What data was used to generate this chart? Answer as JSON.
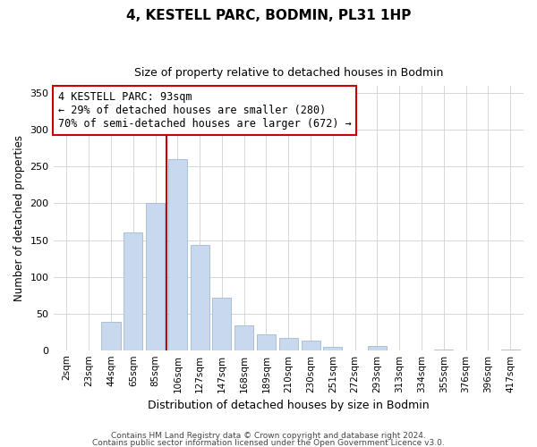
{
  "title": "4, KESTELL PARC, BODMIN, PL31 1HP",
  "subtitle": "Size of property relative to detached houses in Bodmin",
  "xlabel": "Distribution of detached houses by size in Bodmin",
  "ylabel": "Number of detached properties",
  "bar_labels": [
    "2sqm",
    "23sqm",
    "44sqm",
    "65sqm",
    "85sqm",
    "106sqm",
    "127sqm",
    "147sqm",
    "168sqm",
    "189sqm",
    "210sqm",
    "230sqm",
    "251sqm",
    "272sqm",
    "293sqm",
    "313sqm",
    "334sqm",
    "355sqm",
    "376sqm",
    "396sqm",
    "417sqm"
  ],
  "bar_values": [
    0,
    0,
    38,
    160,
    200,
    260,
    143,
    72,
    34,
    22,
    17,
    13,
    4,
    0,
    6,
    0,
    0,
    1,
    0,
    0,
    1
  ],
  "bar_color": "#c8d9ee",
  "bar_edge_color": "#aabfdb",
  "vline_x": 4.5,
  "vline_color": "#cc0000",
  "annotation_title": "4 KESTELL PARC: 93sqm",
  "annotation_line1": "← 29% of detached houses are smaller (280)",
  "annotation_line2": "70% of semi-detached houses are larger (672) →",
  "annotation_box_color": "#ffffff",
  "annotation_box_edge": "#cc0000",
  "ylim": [
    0,
    360
  ],
  "yticks": [
    0,
    50,
    100,
    150,
    200,
    250,
    300,
    350
  ],
  "footer1": "Contains HM Land Registry data © Crown copyright and database right 2024.",
  "footer2": "Contains public sector information licensed under the Open Government Licence v3.0."
}
